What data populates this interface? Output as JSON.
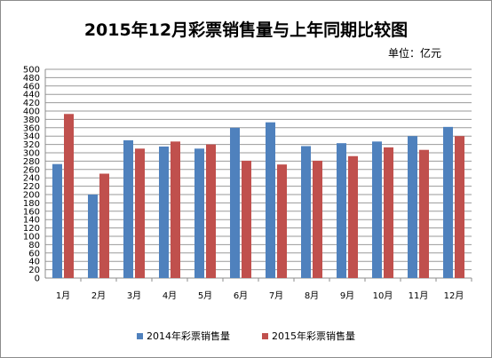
{
  "chart_data": {
    "type": "bar",
    "title": "2015年12月彩票销售量与上年同期比较图",
    "unit": "单位：亿元",
    "categories": [
      "1月",
      "2月",
      "3月",
      "4月",
      "5月",
      "6月",
      "7月",
      "8月",
      "9月",
      "10月",
      "11月",
      "12月"
    ],
    "ylim": [
      0,
      500
    ],
    "ytick_step": 20,
    "grid": true,
    "legend_position": "bottom",
    "series": [
      {
        "name": "2014年彩票销售量",
        "color": "#4f81bd",
        "values": [
          273,
          200,
          330,
          315,
          310,
          360,
          373,
          316,
          323,
          327,
          340,
          362
        ]
      },
      {
        "name": "2015年彩票销售量",
        "color": "#c0504d",
        "values": [
          393,
          250,
          310,
          327,
          320,
          281,
          272,
          281,
          292,
          313,
          307,
          340
        ]
      }
    ]
  }
}
